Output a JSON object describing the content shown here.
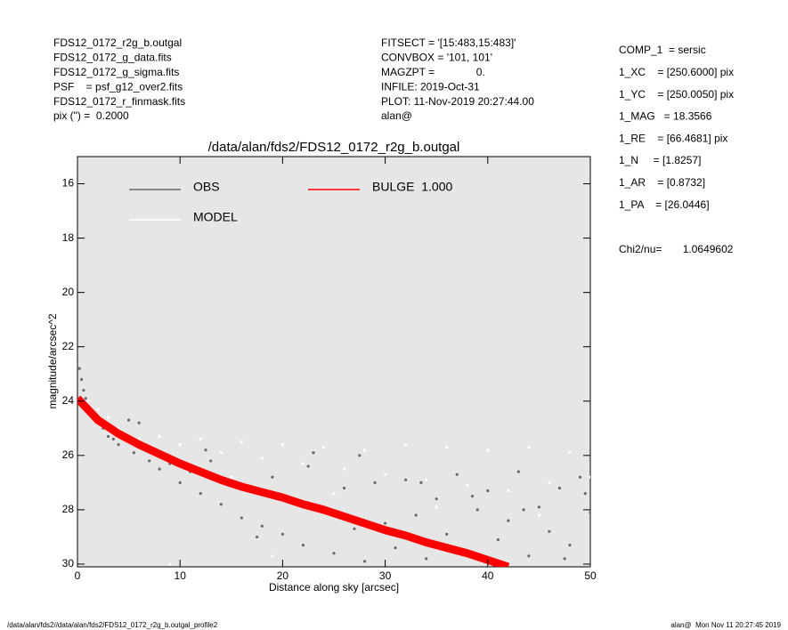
{
  "header": {
    "left": [
      "FDS12_0172_r2g_b.outgal",
      "FDS12_0172_g_data.fits",
      "FDS12_0172_g_sigma.fits",
      "PSF    = psf_g12_over2.fits",
      "FDS12_0172_r_finmask.fits",
      "pix (\") =  0.2000"
    ],
    "middle": [
      "FITSECT = '[15:483,15:483]'",
      "CONVBOX = '101, 101'",
      "MAGZPT =              0.",
      "INFILE: 2019-Oct-31",
      "PLOT: 11-Nov-2019 20:27:44.00",
      "alan@"
    ],
    "right": [
      "COMP_1  = sersic",
      "1_XC    = [250.6000] pix",
      "1_YC    = [250.0050] pix",
      "1_MAG   = 18.3566",
      "1_RE    = [66.4681] pix",
      "1_N     = [1.8257]",
      "1_AR    = [0.8732]",
      "1_PA    = [26.0446]"
    ],
    "chi2": "Chi2/nu=       1.0649602"
  },
  "footer": {
    "left": "/data/alan/fds2//data/alan/fds2/FDS12_0172_r2g_b.outgal_profile2",
    "right": "alan@  Mon Nov 11 20:27:45 2019"
  },
  "chart_data": {
    "type": "scatter",
    "title": "/data/alan/fds2/FDS12_0172_r2g_b.outgal",
    "x_label": "Distance along sky [arcsec]",
    "y_label": "magnitude/arcsec^2",
    "xlim": [
      0,
      50
    ],
    "xticks": [
      0,
      10,
      20,
      30,
      40,
      50
    ],
    "ylim": [
      15,
      30.1
    ],
    "yticks": [
      16,
      18,
      20,
      22,
      24,
      26,
      28,
      30
    ],
    "y_inverted": true,
    "background": "#e6e6e6",
    "series": [
      {
        "name": "OBS",
        "color": "#6a6a6a",
        "kind": "scatter",
        "x": [
          0.2,
          0.4,
          0.6,
          0.8,
          1.0,
          1.3,
          1.6,
          2.0,
          2.5,
          3.0,
          3.5,
          4.0,
          5.0,
          5.5,
          6.0,
          7.0,
          8.0,
          9.0,
          10,
          11,
          12,
          13,
          14,
          15,
          16,
          17,
          18,
          19,
          20,
          21,
          22,
          23,
          24,
          25,
          26,
          27,
          28,
          29,
          30,
          31,
          32,
          33,
          34,
          35,
          36,
          37,
          38,
          39,
          40,
          41,
          42,
          43,
          44,
          45,
          46,
          47,
          48,
          49,
          50,
          12.5,
          17.5,
          22.5,
          27.5,
          33.5,
          38.5,
          43.5,
          47.5,
          49.5
        ],
        "values": [
          22.8,
          23.2,
          23.6,
          23.9,
          24.2,
          24.4,
          24.6,
          24.8,
          25.0,
          25.3,
          25.4,
          25.6,
          24.7,
          25.9,
          24.8,
          26.2,
          26.5,
          26.3,
          27.0,
          26.6,
          27.4,
          26.2,
          27.8,
          27.1,
          28.3,
          27.3,
          28.6,
          26.8,
          28.9,
          27.6,
          29.3,
          25.9,
          28.1,
          29.6,
          27.2,
          28.7,
          29.9,
          27.0,
          28.5,
          29.4,
          26.9,
          28.2,
          29.8,
          27.6,
          28.9,
          26.7,
          29.5,
          28.0,
          27.3,
          29.1,
          28.4,
          26.6,
          29.7,
          27.9,
          28.8,
          27.2,
          29.3,
          26.8,
          28.1,
          25.8,
          29.0,
          26.4,
          26.0,
          27.0,
          27.5,
          28.0,
          29.8,
          27.4
        ]
      },
      {
        "name": "MODEL",
        "color": "#ffffff",
        "kind": "scatter",
        "x": [
          1,
          2,
          3,
          4,
          6,
          8,
          10,
          12,
          14,
          16,
          18,
          20,
          22,
          24,
          26,
          28,
          30,
          32,
          34,
          36,
          38,
          40,
          42,
          44,
          46,
          48,
          50,
          15,
          25,
          35,
          45,
          9,
          19
        ],
        "values": [
          24.0,
          24.3,
          24.6,
          25.0,
          25.4,
          25.3,
          25.6,
          25.4,
          25.9,
          25.5,
          26.1,
          25.6,
          26.3,
          25.7,
          26.5,
          25.8,
          26.7,
          25.6,
          26.9,
          25.7,
          27.1,
          25.8,
          27.3,
          25.7,
          27.0,
          25.9,
          26.8,
          26.8,
          27.4,
          27.9,
          28.2,
          30.0,
          29.7
        ]
      },
      {
        "name": "BULGE  1.000",
        "color": "#ff0000",
        "kind": "line",
        "x": [
          0,
          1,
          2,
          4,
          6,
          8,
          10,
          12,
          14,
          16,
          18,
          20,
          22,
          24,
          26,
          28,
          30,
          32,
          34,
          36,
          38,
          40,
          42
        ],
        "values": [
          23.9,
          24.3,
          24.7,
          25.2,
          25.6,
          25.95,
          26.3,
          26.6,
          26.9,
          27.15,
          27.35,
          27.55,
          27.8,
          28.0,
          28.25,
          28.5,
          28.75,
          28.95,
          29.2,
          29.4,
          29.6,
          29.85,
          30.1
        ]
      }
    ]
  }
}
